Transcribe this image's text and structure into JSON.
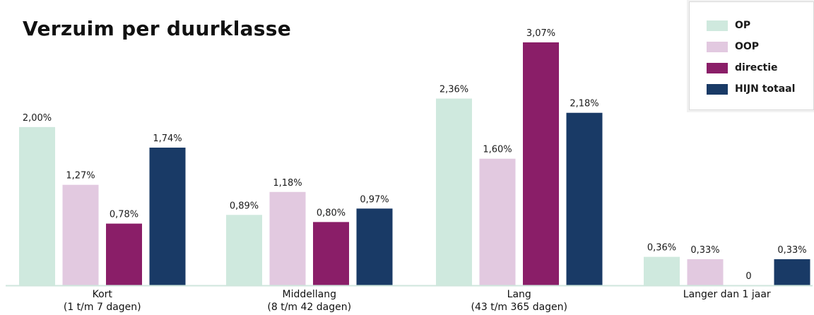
{
  "colors": {
    "OP": "#cfe9de",
    "OOP": "#e2c9e0",
    "directie": "#8a1e68",
    "HIJN totaal": "#193a66",
    "axis": "#cfe6dc"
  },
  "chart_data": {
    "type": "bar",
    "title": "Verzuim per duurklasse",
    "xlabel": "",
    "ylabel": "",
    "ylim": [
      0,
      3.07
    ],
    "grid": false,
    "legend_position": "top-right",
    "categories": [
      [
        "Kort",
        "(1 t/m 7 dagen)"
      ],
      [
        "Middellang",
        "(8 t/m 42 dagen)"
      ],
      [
        "Lang",
        "(43 t/m 365 dagen)"
      ],
      [
        "Langer dan 1 jaar"
      ]
    ],
    "series": [
      {
        "name": "OP",
        "values": [
          2.0,
          0.89,
          2.36,
          0.36
        ],
        "labels": [
          "2,00%",
          "0,89%",
          "2,36%",
          "0,36%"
        ]
      },
      {
        "name": "OOP",
        "values": [
          1.27,
          1.18,
          1.6,
          0.33
        ],
        "labels": [
          "1,27%",
          "1,18%",
          "1,60%",
          "0,33%"
        ]
      },
      {
        "name": "directie",
        "values": [
          0.78,
          0.8,
          3.07,
          0
        ],
        "labels": [
          "0,78%",
          "0,80%",
          "3,07%",
          "0"
        ]
      },
      {
        "name": "HIJN totaal",
        "values": [
          1.74,
          0.97,
          2.18,
          0.33
        ],
        "labels": [
          "1,74%",
          "0,97%",
          "2,18%",
          "0,33%"
        ]
      }
    ]
  }
}
